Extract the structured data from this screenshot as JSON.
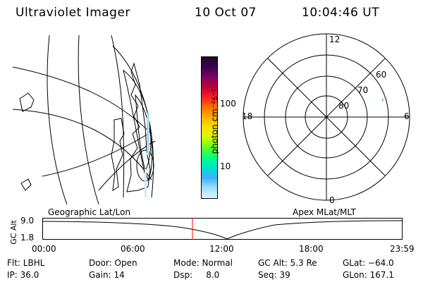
{
  "header": {
    "instrument": "Ultraviolet Imager",
    "date": "10 Oct 07",
    "time": "10:04:46 UT"
  },
  "colorbar": {
    "label": "photon cm⁻²s⁻¹",
    "ticks": [
      "100",
      "10"
    ],
    "colors": [
      "#1a0a2a",
      "#3a0050",
      "#800060",
      "#c0003a",
      "#ff2020",
      "#ff7000",
      "#ffb000",
      "#ffe000",
      "#d0ff00",
      "#60ff20",
      "#00ff80",
      "#00e0d0",
      "#40b0ff",
      "#a0e0ff",
      "#e0f0ff"
    ]
  },
  "polar_plot": {
    "mlt_labels": {
      "top": "12",
      "left": "18",
      "right": "6",
      "bottom": "0"
    },
    "lat_labels": [
      "60",
      "70",
      "80"
    ]
  },
  "timeline": {
    "left_label": "Geographic Lat/Lon",
    "right_label": "Apex MLat/MLT",
    "axis_label": "GC Alt",
    "y_ticks": [
      "9.0",
      "1.8"
    ],
    "x_ticks": [
      "00:00",
      "06:00",
      "12:00",
      "18:00",
      "23:59"
    ],
    "marker_color": "#ff0000"
  },
  "info_row1": {
    "filter": "Flt: LBHL",
    "door": "Door: Open",
    "mode": "Mode: Normal",
    "gc_alt": "GC Alt: 5.3 Re",
    "glat": "GLat: −64.0"
  },
  "info_row2": {
    "ip": "IP: 36.0",
    "gain": "Gain: 14",
    "dsp": "Dsp:     8.0",
    "seq": "Seq: 39",
    "glon": "GLon: 167.1"
  }
}
